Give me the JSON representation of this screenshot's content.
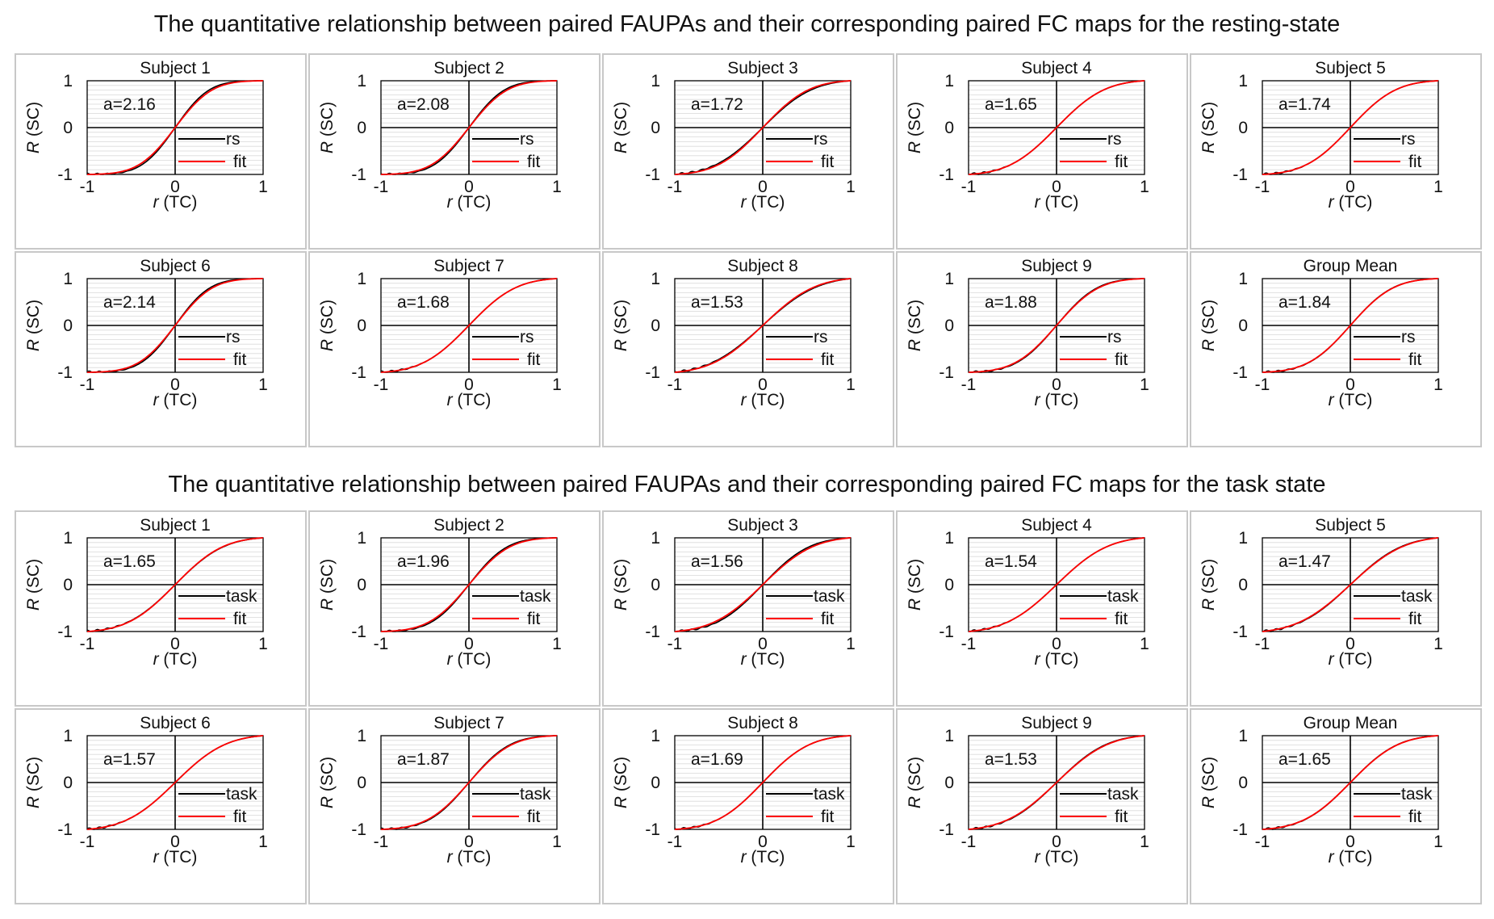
{
  "sections": [
    {
      "id": "rest",
      "title": "The quantitative relationship between paired FAUPAs and their corresponding paired FC maps for the resting-state",
      "legend_data": "rs",
      "legend_fit": "fit"
    },
    {
      "id": "task",
      "title": "The quantitative relationship between paired FAUPAs and their corresponding paired FC maps for the task state",
      "legend_data": "task",
      "legend_fit": "fit"
    }
  ],
  "axis": {
    "xlabel_var": "r",
    "xlabel_unit": " (TC)",
    "ylabel_var": "R",
    "ylabel_unit": " (SC)",
    "xticks": [
      "-1",
      "0",
      "1"
    ],
    "yticks": [
      "1",
      "0",
      "-1"
    ]
  },
  "colors": {
    "data": "#000000",
    "fit": "#ff0000",
    "grid": "#d9d9d9",
    "frame": "#c8c8c8"
  },
  "chart_data": [
    {
      "type": "line",
      "section": "rest",
      "xlim": [
        -1,
        1
      ],
      "ylim": [
        -1,
        1
      ],
      "model": "fit: R = erf(a*r)-like sigmoid, saturating at ±1",
      "panels": [
        {
          "title": "Subject 1",
          "a_label": "a=2.16",
          "a": 2.16,
          "data_a": 2.35
        },
        {
          "title": "Subject 2",
          "a_label": "a=2.08",
          "a": 2.08,
          "data_a": 2.25
        },
        {
          "title": "Subject 3",
          "a_label": "a=1.72",
          "a": 1.72,
          "data_a": 1.6
        },
        {
          "title": "Subject 4",
          "a_label": "a=1.65",
          "a": 1.65,
          "data_a": 1.65
        },
        {
          "title": "Subject 5",
          "a_label": "a=1.74",
          "a": 1.74,
          "data_a": 1.74
        },
        {
          "title": "Subject 6",
          "a_label": "a=2.14",
          "a": 2.14,
          "data_a": 2.3
        },
        {
          "title": "Subject 7",
          "a_label": "a=1.68",
          "a": 1.68,
          "data_a": 1.68
        },
        {
          "title": "Subject 8",
          "a_label": "a=1.53",
          "a": 1.53,
          "data_a": 1.45
        },
        {
          "title": "Subject 9",
          "a_label": "a=1.88",
          "a": 1.88,
          "data_a": 1.95
        },
        {
          "title": "Group Mean",
          "a_label": "a=1.84",
          "a": 1.84,
          "data_a": 1.86
        }
      ]
    },
    {
      "type": "line",
      "section": "task",
      "xlim": [
        -1,
        1
      ],
      "ylim": [
        -1,
        1
      ],
      "model": "fit: R = erf(a*r)-like sigmoid, saturating at ±1",
      "panels": [
        {
          "title": "Subject 1",
          "a_label": "a=1.65",
          "a": 1.65,
          "data_a": 1.62
        },
        {
          "title": "Subject 2",
          "a_label": "a=1.96",
          "a": 1.96,
          "data_a": 2.1
        },
        {
          "title": "Subject 3",
          "a_label": "a=1.56",
          "a": 1.56,
          "data_a": 1.7
        },
        {
          "title": "Subject 4",
          "a_label": "a=1.54",
          "a": 1.54,
          "data_a": 1.54
        },
        {
          "title": "Subject 5",
          "a_label": "a=1.47",
          "a": 1.47,
          "data_a": 1.52
        },
        {
          "title": "Subject 6",
          "a_label": "a=1.57",
          "a": 1.57,
          "data_a": 1.57
        },
        {
          "title": "Subject 7",
          "a_label": "a=1.87",
          "a": 1.87,
          "data_a": 1.95
        },
        {
          "title": "Subject 8",
          "a_label": "a=1.69",
          "a": 1.69,
          "data_a": 1.69
        },
        {
          "title": "Subject 9",
          "a_label": "a=1.53",
          "a": 1.53,
          "data_a": 1.58
        },
        {
          "title": "Group Mean",
          "a_label": "a=1.65",
          "a": 1.65,
          "data_a": 1.67
        }
      ]
    }
  ]
}
